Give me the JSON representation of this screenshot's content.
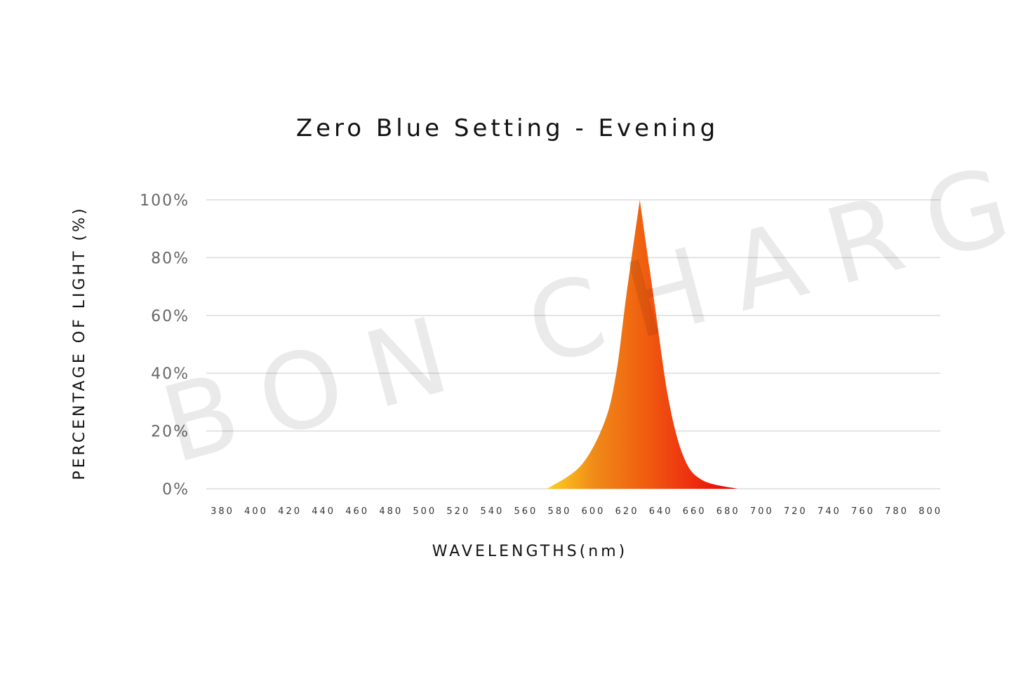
{
  "chart_data": {
    "type": "area",
    "title": "Zero Blue Setting - Evening",
    "xlabel": "WAVELENGTHS(nm)",
    "ylabel": "PERCENTAGE OF LIGHT (%)",
    "xlim": [
      380,
      800
    ],
    "ylim": [
      0,
      100
    ],
    "x_ticks": [
      "380",
      "400",
      "420",
      "440",
      "460",
      "480",
      "500",
      "520",
      "540",
      "560",
      "580",
      "600",
      "620",
      "640",
      "660",
      "680",
      "700",
      "720",
      "740",
      "760",
      "780",
      "800"
    ],
    "y_ticks": [
      "0%",
      "20%",
      "40%",
      "60%",
      "80%",
      "100%"
    ],
    "grid": true,
    "watermark": "BON CHARGE",
    "series": [
      {
        "x": [
          573,
          593,
          607,
          614,
          620,
          628,
          637,
          645,
          654,
          665,
          686
        ],
        "y": [
          0,
          8,
          23,
          40,
          67,
          100,
          63,
          31,
          11,
          3,
          0
        ]
      }
    ],
    "gradient_colors": [
      "#ffd020",
      "#f08a18",
      "#f06010",
      "#ee3010",
      "#e80000"
    ]
  }
}
